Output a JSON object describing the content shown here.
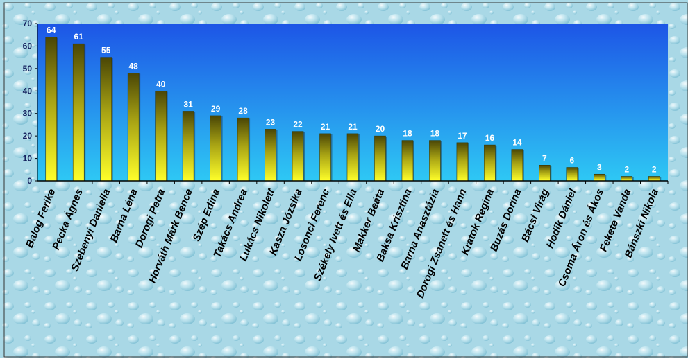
{
  "chart_data": {
    "type": "bar",
    "title": "",
    "xlabel": "",
    "ylabel": "",
    "ylim": [
      0,
      70
    ],
    "yticks": [
      0,
      10,
      20,
      30,
      40,
      50,
      60,
      70
    ],
    "grid": false,
    "legend": "none",
    "categories": [
      "Balog Ferike",
      "Pecka Ágnes",
      "Szebenyi Daniella",
      "Barna Léna",
      "Dorogi Petra",
      "Horváth Márk Bence",
      "Szép Edina",
      "Takács Andrea",
      "Lukács Nikolett",
      "Kasza Józsika",
      "Losonci Ferenc",
      "Székely Ivett és Ella",
      "Makker Beáta",
      "Baksa Krisztina",
      "Barna Anasztázia",
      "Dorogi Zsanett és Hann",
      "Kratok Regina",
      "Buzás Dorina",
      "Bácsi Virág",
      "Hodik Dániel",
      "Csoma Áron és Ákos",
      "Fekete Vanda",
      "Bánszki Nikola"
    ],
    "values": [
      64,
      61,
      55,
      48,
      40,
      31,
      29,
      28,
      23,
      22,
      21,
      21,
      20,
      18,
      18,
      17,
      16,
      14,
      7,
      6,
      3,
      2,
      2
    ],
    "colors": {
      "plot_top": "#1d55e6",
      "plot_bottom": "#2ec8f4",
      "bar_top": "#4a4606",
      "bar_bottom": "#ffff2a",
      "label_color": "#ffffff",
      "tick_color": "#15215e",
      "page_bg": "#a9d8e6"
    }
  }
}
